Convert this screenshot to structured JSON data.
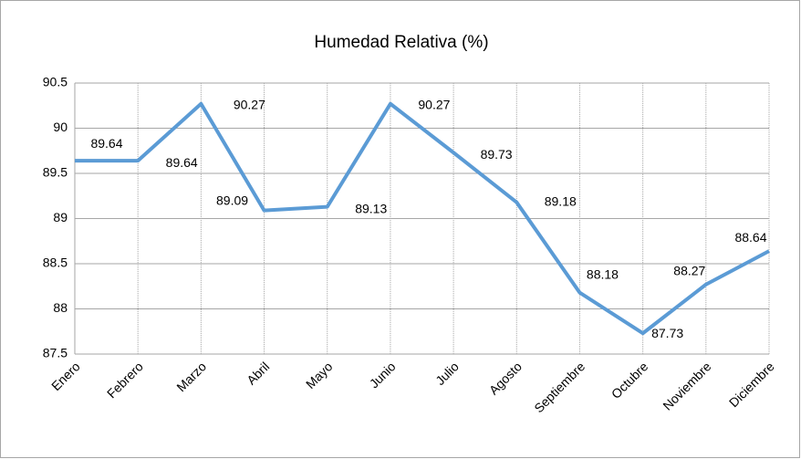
{
  "chart_data": {
    "type": "line",
    "title": "Humedad Relativa (%)",
    "categories": [
      "Enero",
      "Febrero",
      "Marzo",
      "Abril",
      "Mayo",
      "Junio",
      "Julio",
      "Agosto",
      "Septiembre",
      "Octubre",
      "Noviembre",
      "Diciembre"
    ],
    "values": [
      89.64,
      89.64,
      90.27,
      89.09,
      89.13,
      90.27,
      89.73,
      89.18,
      88.18,
      87.73,
      88.27,
      88.64
    ],
    "color": "#5b9bd5",
    "ylim": [
      87.5,
      90.5
    ],
    "yticks": [
      87.5,
      88,
      88.5,
      89,
      89.5,
      90,
      90.5
    ],
    "grid": true
  }
}
